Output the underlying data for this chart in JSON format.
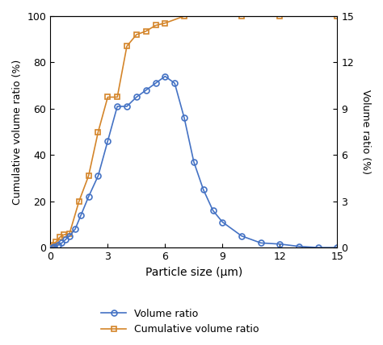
{
  "volume_ratio_x": [
    0.1,
    0.2,
    0.4,
    0.6,
    0.8,
    1.0,
    1.3,
    1.6,
    2.0,
    2.5,
    3.0,
    3.5,
    4.0,
    4.5,
    5.0,
    5.5,
    6.0,
    6.5,
    7.0,
    7.5,
    8.0,
    8.5,
    9.0,
    10.0,
    11.0,
    12.0,
    13.0,
    14.0,
    15.0
  ],
  "volume_ratio_y": [
    0.0,
    0.3,
    1.0,
    2.0,
    3.5,
    5.0,
    8.0,
    14.0,
    22.0,
    31.0,
    46.0,
    61.0,
    61.0,
    65.0,
    68.0,
    71.0,
    74.0,
    71.0,
    56.0,
    37.0,
    25.0,
    16.0,
    11.0,
    5.0,
    2.0,
    1.5,
    0.5,
    0.0,
    0.0
  ],
  "cumulative_x": [
    0.1,
    0.2,
    0.3,
    0.5,
    0.7,
    1.0,
    1.5,
    2.0,
    2.5,
    3.0,
    3.5,
    4.0,
    4.5,
    5.0,
    5.5,
    6.0,
    7.0,
    10.0,
    12.0,
    15.0
  ],
  "cumulative_y": [
    0.0,
    1.0,
    2.5,
    4.5,
    5.5,
    6.0,
    20.0,
    31.0,
    50.0,
    65.0,
    65.0,
    87.0,
    92.0,
    93.5,
    96.0,
    97.0,
    100.0,
    100.0,
    100.0,
    100.0
  ],
  "volume_color": "#4472C4",
  "cumulative_color": "#D4852A",
  "xlabel": "Particle size (μm)",
  "ylabel_left": "Cumulative volume ratio (%)",
  "ylabel_right": "Volume ratio (%)",
  "xlim": [
    0,
    15
  ],
  "ylim_left": [
    0,
    100
  ],
  "ylim_right": [
    0,
    15
  ],
  "xticks": [
    0,
    3,
    6,
    9,
    12,
    15
  ],
  "yticks_left": [
    0,
    20,
    40,
    60,
    80,
    100
  ],
  "yticks_right": [
    0,
    3,
    6,
    9,
    12,
    15
  ],
  "legend_volume": "Volume ratio",
  "legend_cumulative": "Cumulative volume ratio",
  "background_color": "#ffffff"
}
